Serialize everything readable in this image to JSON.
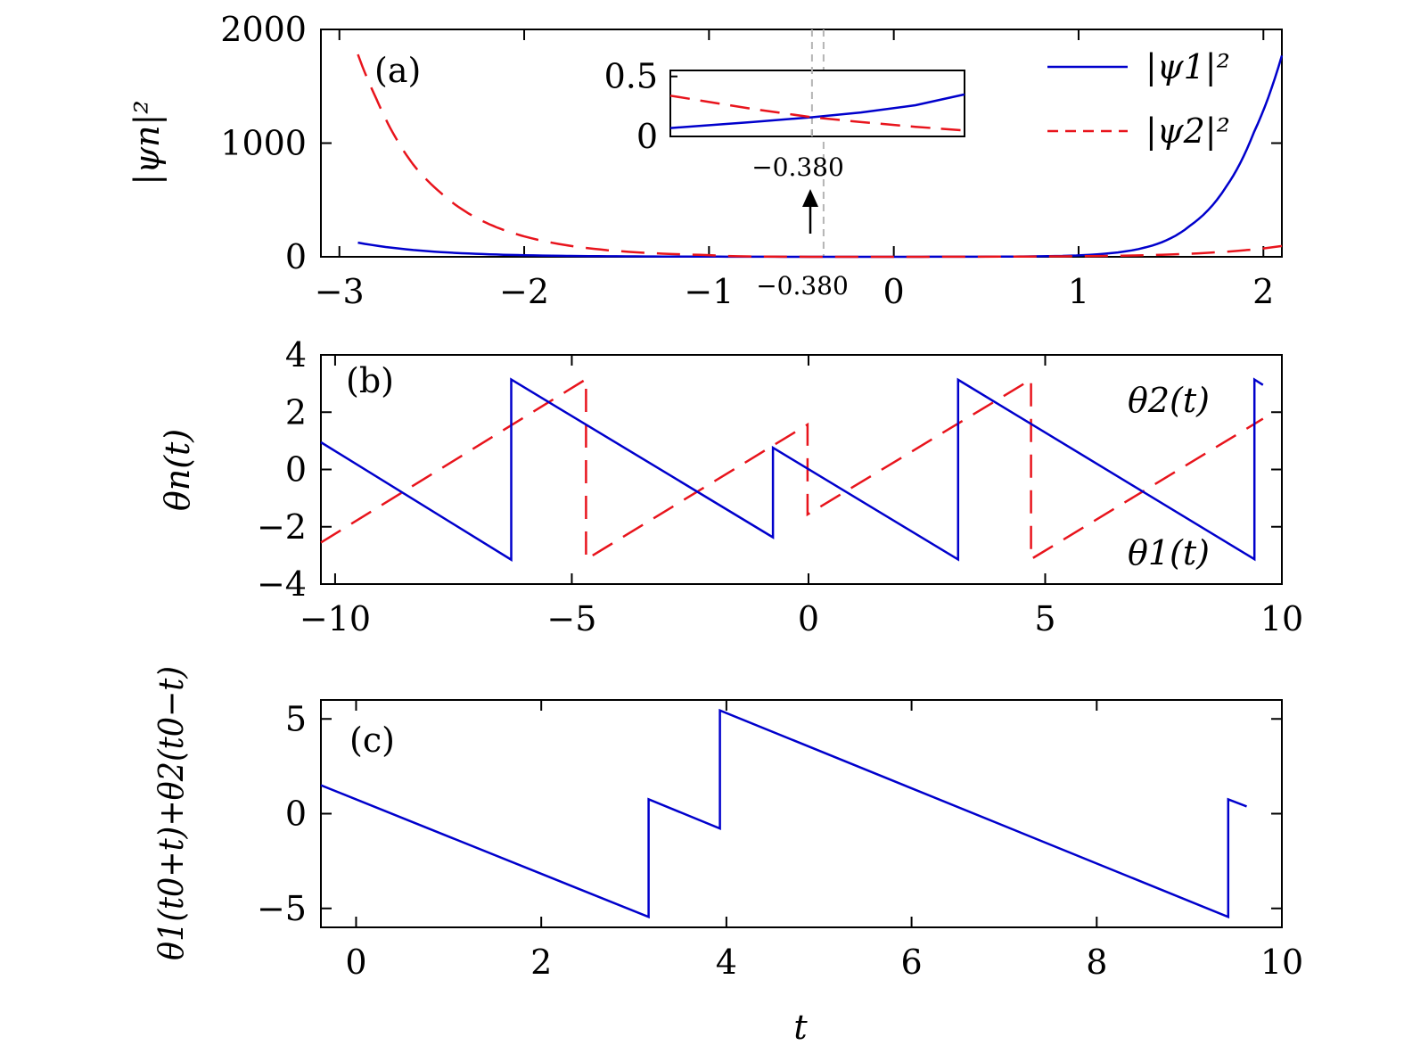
{
  "colors": {
    "blue": "#0000cc",
    "red": "#e8141c",
    "axis": "#000000",
    "guide": "#b4b4b4"
  },
  "chart_data": [
    {
      "id": "a",
      "type": "line",
      "panel_label": "(a)",
      "ylabel": "|ψn|²",
      "xlim": [
        -3.1,
        2.1
      ],
      "ylim": [
        0,
        2000
      ],
      "xticks": [
        -3,
        -2,
        -1,
        0,
        1,
        2
      ],
      "xtick_labels": [
        "−3",
        "−2",
        "−1",
        "0",
        "1",
        "2"
      ],
      "yticks": [
        0,
        1000,
        2000
      ],
      "ytick_labels": [
        "0",
        "1000",
        "2000"
      ],
      "annotation": {
        "x": -0.38,
        "label": "−0.380"
      },
      "legend": {
        "position": "top-right",
        "entries": [
          {
            "series": "psi1",
            "label": "|ψ1|²"
          },
          {
            "series": "psi2",
            "label": "|ψ2|²"
          }
        ]
      },
      "series": [
        {
          "id": "psi1",
          "name": "|ψ1|²",
          "style": "solid",
          "color": "#0000cc",
          "x": [
            -2.9,
            -2.6,
            -2.3,
            -2.0,
            -1.6,
            -1.2,
            -0.8,
            -0.38,
            0.0,
            0.4,
            0.8,
            1.1,
            1.4,
            1.6,
            1.8,
            1.95,
            2.1
          ],
          "y": [
            125,
            60,
            29,
            14,
            5.6,
            2.3,
            0.9,
            0.16,
            0.2,
            0.9,
            4.5,
            22,
            100,
            270,
            620,
            1100,
            1770
          ]
        },
        {
          "id": "psi2",
          "name": "|ψ2|²",
          "style": "dashed",
          "color": "#e8141c",
          "x": [
            -2.9,
            -2.8,
            -2.7,
            -2.6,
            -2.45,
            -2.3,
            -2.15,
            -2.0,
            -1.7,
            -1.4,
            -1.0,
            -0.38,
            0.2,
            0.8,
            1.3,
            1.7,
            2.1
          ],
          "y": [
            1780,
            1390,
            1060,
            810,
            560,
            380,
            260,
            180,
            85,
            40,
            15,
            0.16,
            0.3,
            3,
            12,
            35,
            95
          ]
        }
      ]
    },
    {
      "id": "a-inset",
      "type": "line",
      "xlim": [
        -0.9,
        0.18
      ],
      "ylim": [
        0,
        0.55
      ],
      "yticks": [
        0,
        0.5
      ],
      "ytick_labels": [
        "0",
        "0.5"
      ],
      "annotation": {
        "x": -0.38,
        "label": "−0.380"
      },
      "series": [
        {
          "id": "psi1-inset",
          "name": "|ψ1|²",
          "style": "solid",
          "color": "#0000cc",
          "x": [
            -0.9,
            -0.6,
            -0.38,
            -0.2,
            0.0,
            0.18
          ],
          "y": [
            0.07,
            0.12,
            0.16,
            0.2,
            0.26,
            0.35
          ]
        },
        {
          "id": "psi2-inset",
          "name": "|ψ2|²",
          "style": "dashed",
          "color": "#e8141c",
          "x": [
            -0.9,
            -0.6,
            -0.38,
            -0.2,
            0.0,
            0.18
          ],
          "y": [
            0.34,
            0.23,
            0.16,
            0.12,
            0.08,
            0.05
          ]
        }
      ]
    },
    {
      "id": "b",
      "type": "line",
      "panel_label": "(b)",
      "ylabel": "θn(t)",
      "xlim": [
        -10.3,
        10
      ],
      "ylim": [
        -4,
        4
      ],
      "xticks": [
        -10,
        -5,
        0,
        5,
        10
      ],
      "xtick_labels": [
        "−10",
        "−5",
        "0",
        "5",
        "10"
      ],
      "yticks": [
        -4,
        -2,
        0,
        2,
        4
      ],
      "ytick_labels": [
        "−4",
        "−2",
        "0",
        "2",
        "4"
      ],
      "series": [
        {
          "id": "theta1",
          "name": "θ1(t)",
          "style": "solid",
          "color": "#0000cc",
          "x": [
            -10.3,
            -6.28,
            -6.28,
            -0.75,
            -0.75,
            3.16,
            3.16,
            9.42,
            9.42,
            9.6
          ],
          "y": [
            0.95,
            -3.15,
            3.14,
            -2.37,
            0.76,
            -3.14,
            3.13,
            -3.13,
            3.14,
            2.95
          ]
        },
        {
          "id": "theta2",
          "name": "θ2(t)",
          "style": "dashed",
          "color": "#e8141c",
          "x": [
            -10.3,
            -4.7,
            -4.7,
            -0.02,
            -0.02,
            4.7,
            4.7,
            9.6
          ],
          "y": [
            -2.55,
            3.15,
            -3.14,
            1.57,
            -1.57,
            3.14,
            -3.13,
            1.77
          ]
        }
      ]
    },
    {
      "id": "c",
      "type": "line",
      "panel_label": "(c)",
      "ylabel": "θ1(t0+t)+θ2(t0−t)",
      "xlabel": "t",
      "xlim": [
        -0.38,
        10
      ],
      "ylim": [
        -6,
        6
      ],
      "xticks": [
        0,
        2,
        4,
        6,
        8,
        10
      ],
      "xtick_labels": [
        "0",
        "2",
        "4",
        "6",
        "8",
        "10"
      ],
      "yticks": [
        -5,
        0,
        5
      ],
      "ytick_labels": [
        "−5",
        "0",
        "5"
      ],
      "series": [
        {
          "id": "sum",
          "name": "",
          "style": "solid",
          "color": "#0000cc",
          "x": [
            -0.38,
            3.16,
            3.16,
            3.93,
            3.93,
            9.42,
            9.42,
            9.62
          ],
          "y": [
            1.5,
            -5.45,
            0.76,
            -0.78,
            5.45,
            -5.45,
            0.76,
            0.38
          ]
        }
      ]
    }
  ]
}
